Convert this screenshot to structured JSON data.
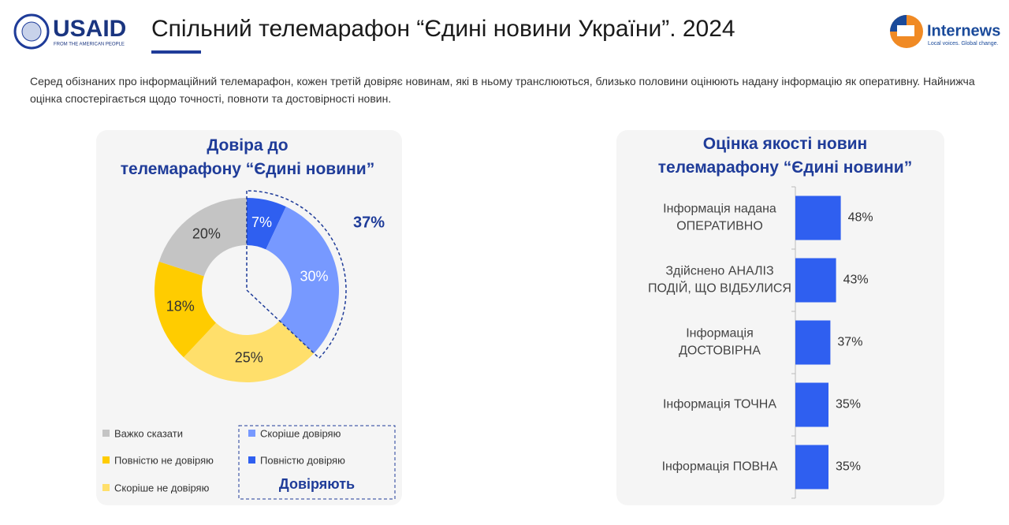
{
  "header": {
    "logo_left": "USAID",
    "logo_left_tagline": "FROM THE AMERICAN PEOPLE",
    "title": "Спільний телемарафон “Єдині новини України”. 2024",
    "logo_right": "Internews",
    "logo_right_tagline": "Local voices. Global change."
  },
  "subtitle": "Серед обізнаних про інформаційний телемарафон, кожен третій довіряє новинам, які в ньому транслюються, близько половини оцінюють надану інформацію як оперативну. Найнижча оцінка спостерігається щодо точності, повноти та достовірності новин.",
  "chart_data": [
    {
      "type": "pie",
      "title": "Довіра до\nтелемарафону “Єдині новини”",
      "categories": [
        "Повністю довіряю",
        "Скоріше довіряю",
        "Скоріше не довіряю",
        "Повністю не довіряю",
        "Важко сказати"
      ],
      "values": [
        7,
        30,
        25,
        18,
        20
      ],
      "value_labels": [
        "7%",
        "30%",
        "25%",
        "18%",
        "20%"
      ],
      "colors": [
        "#2f5ff0",
        "#7799ff",
        "#ffdf6b",
        "#ffcc00",
        "#c4c4c4"
      ],
      "annotation": "37%",
      "group_label": "Довіряють"
    },
    {
      "type": "bar",
      "orientation": "horizontal",
      "title": "Оцінка якості новин\nтелемарафону “Єдині новини”",
      "categories": [
        "Інформація надана\nОПЕРАТИВНО",
        "Здійснено АНАЛІЗ\nПОДІЙ, ЩО ВІДБУЛИСЯ",
        "Інформація\nДОСТОВІРНА",
        "Інформація ТОЧНА",
        "Інформація ПОВНА"
      ],
      "values": [
        48,
        43,
        37,
        35,
        35
      ],
      "value_labels": [
        "48%",
        "43%",
        "37%",
        "35%",
        "35%"
      ],
      "color": "#2f5ff0"
    }
  ]
}
